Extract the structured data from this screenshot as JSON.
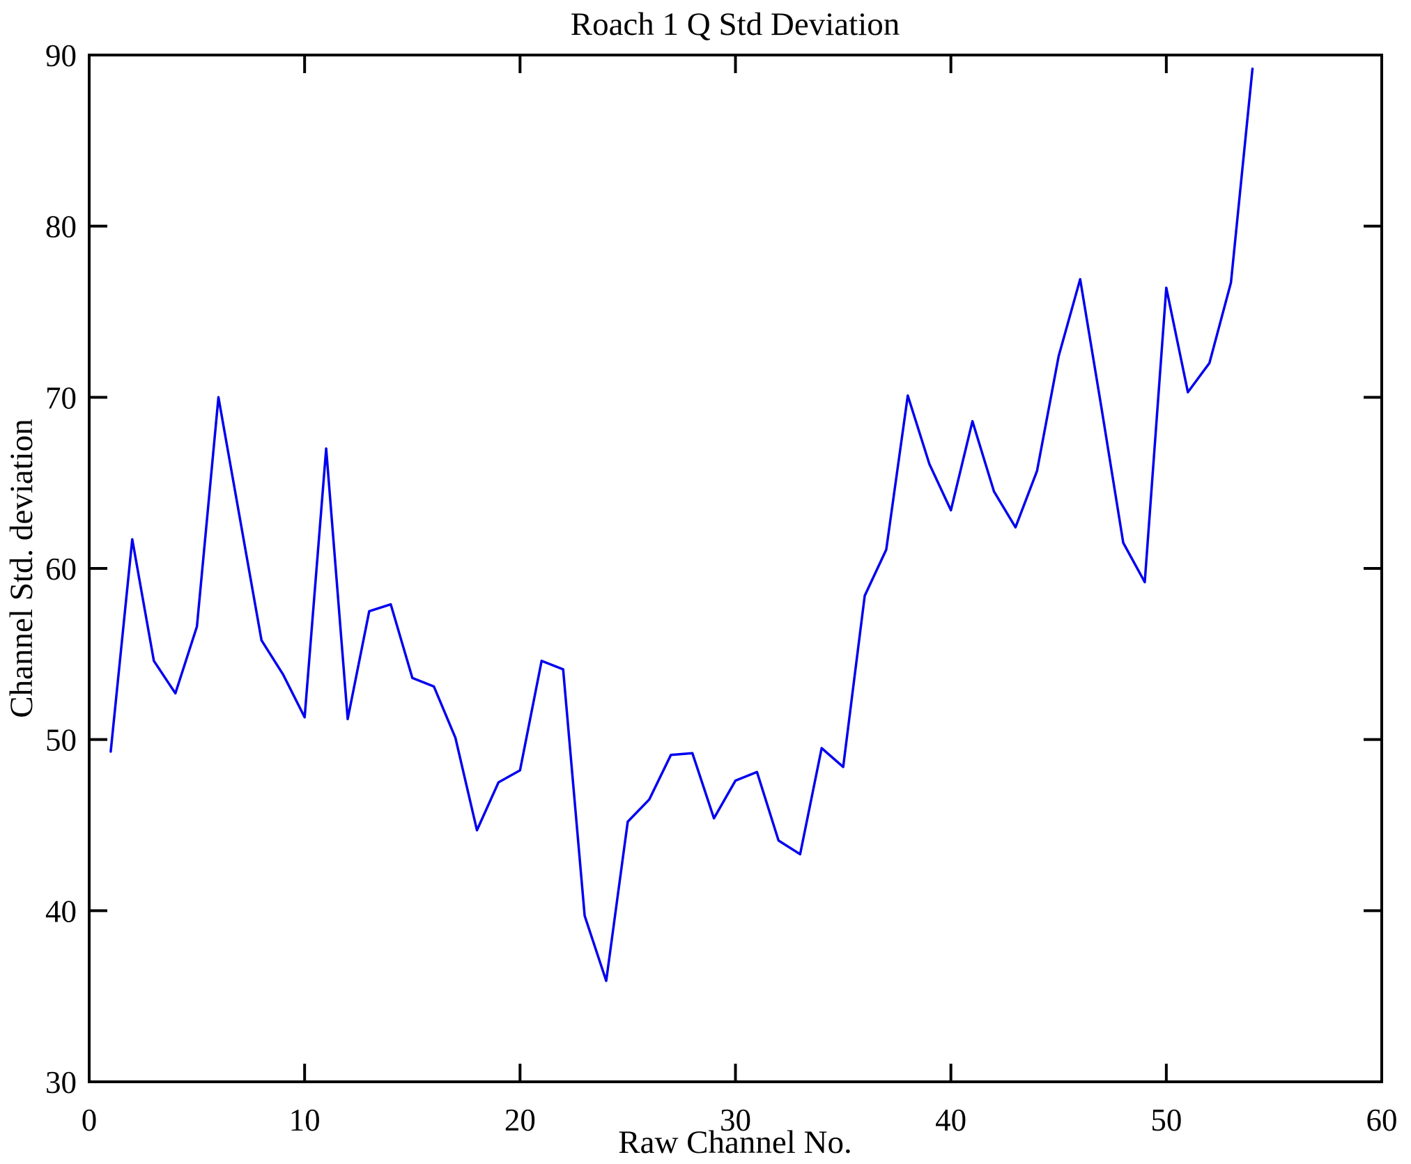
{
  "chart_data": {
    "type": "line",
    "title": "Roach 1 Q Std Deviation",
    "xlabel": "Raw Channel No.",
    "ylabel": "Channel Std. deviation",
    "xlim": [
      0,
      60
    ],
    "ylim": [
      30,
      90
    ],
    "xticks": [
      0,
      10,
      20,
      30,
      40,
      50,
      60
    ],
    "yticks": [
      30,
      40,
      50,
      60,
      70,
      80,
      90
    ],
    "grid": false,
    "legend": "none",
    "line_color": "#0000ee",
    "x": [
      1,
      2,
      3,
      4,
      5,
      6,
      7,
      8,
      9,
      10,
      11,
      12,
      13,
      14,
      15,
      16,
      17,
      18,
      19,
      20,
      21,
      22,
      23,
      24,
      25,
      26,
      27,
      28,
      29,
      30,
      31,
      32,
      33,
      34,
      35,
      36,
      37,
      38,
      39,
      40,
      41,
      42,
      43,
      44,
      45,
      46,
      47,
      48,
      49,
      50,
      51,
      52,
      53,
      54
    ],
    "series": [
      {
        "name": "Channel Std. deviation",
        "values": [
          49.3,
          61.7,
          54.6,
          52.7,
          56.6,
          70.0,
          62.9,
          55.8,
          53.8,
          51.3,
          67.0,
          51.2,
          57.5,
          57.9,
          53.6,
          53.1,
          50.1,
          44.7,
          47.5,
          48.2,
          54.6,
          54.1,
          39.7,
          35.9,
          45.2,
          46.5,
          49.1,
          49.2,
          45.4,
          47.6,
          48.1,
          44.1,
          43.3,
          49.5,
          48.4,
          58.4,
          61.1,
          70.1,
          66.1,
          63.4,
          68.6,
          64.5,
          62.4,
          65.7,
          72.4,
          76.9,
          69.3,
          61.5,
          59.2,
          76.4,
          70.3,
          72.0,
          76.7,
          89.2
        ]
      }
    ]
  }
}
